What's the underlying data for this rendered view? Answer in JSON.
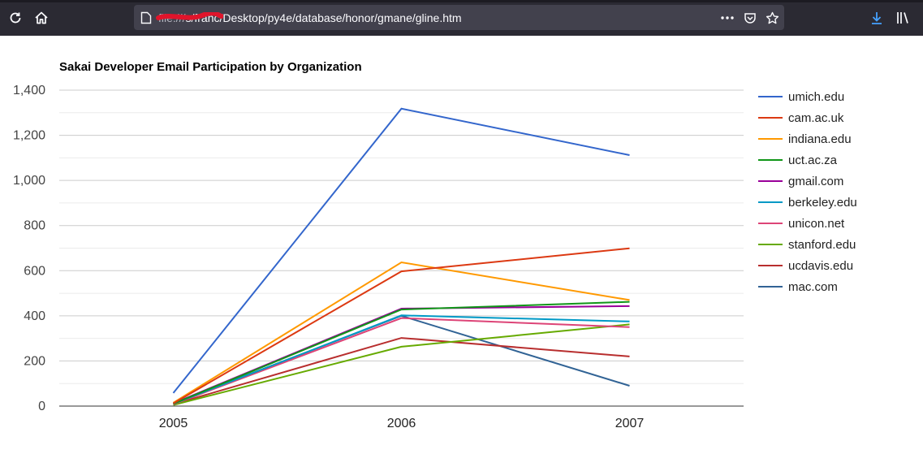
{
  "browser": {
    "url_prefix": "file:///",
    "url_path": "s/franc/Desktop/py4e/database/honor/gmane/gline.htm",
    "icons": [
      "reload-icon",
      "home-icon",
      "page-icon",
      "more-icon",
      "pocket-icon",
      "bookmark-star-icon",
      "download-icon",
      "library-icon"
    ]
  },
  "chart_data": {
    "type": "line",
    "title": "Sakai Developer Email Participation by Organization",
    "xlabel": "",
    "ylabel": "",
    "categories": [
      "2005",
      "2006",
      "2007"
    ],
    "ylim": [
      0,
      1400
    ],
    "yticks": [
      0,
      200,
      400,
      600,
      800,
      1000,
      1200,
      1400
    ],
    "ytick_labels": [
      "0",
      "200",
      "400",
      "600",
      "800",
      "1,000",
      "1,200",
      "1,400"
    ],
    "grid": true,
    "legend_position": "right",
    "series": [
      {
        "name": "umich.edu",
        "color": "#3366cc",
        "values": [
          58,
          1318,
          1112
        ]
      },
      {
        "name": "cam.ac.uk",
        "color": "#dc3912",
        "values": [
          12,
          597,
          699
        ]
      },
      {
        "name": "indiana.edu",
        "color": "#ff9900",
        "values": [
          15,
          637,
          470
        ]
      },
      {
        "name": "uct.ac.za",
        "color": "#109618",
        "values": [
          10,
          428,
          462
        ]
      },
      {
        "name": "gmail.com",
        "color": "#990099",
        "values": [
          12,
          432,
          443
        ]
      },
      {
        "name": "berkeley.edu",
        "color": "#0099c6",
        "values": [
          10,
          402,
          375
        ]
      },
      {
        "name": "unicon.net",
        "color": "#dd4477",
        "values": [
          8,
          390,
          350
        ]
      },
      {
        "name": "stanford.edu",
        "color": "#66aa00",
        "values": [
          5,
          263,
          362
        ]
      },
      {
        "name": "ucdavis.edu",
        "color": "#b82e2e",
        "values": [
          8,
          302,
          220
        ]
      },
      {
        "name": "mac.com",
        "color": "#316395",
        "values": [
          12,
          400,
          90
        ]
      }
    ]
  }
}
